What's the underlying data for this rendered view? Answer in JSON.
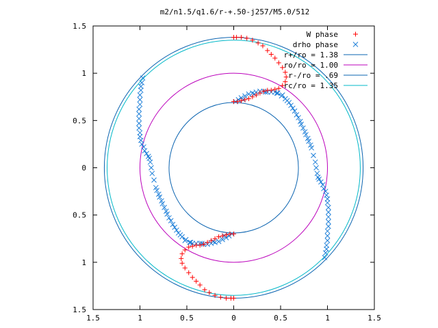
{
  "chart_data": {
    "type": "scatter",
    "title": "m2/n1.5/q1.6/r-+.50-j257/M5.0/512",
    "xlabel": "",
    "ylabel": "",
    "xlim": [
      -1.5,
      1.5
    ],
    "ylim": [
      -1.5,
      1.5
    ],
    "x_ticks": [
      "1.5",
      "1",
      "0.5",
      "0",
      "0.5",
      "1",
      "1.5"
    ],
    "y_ticks": [
      "1.5",
      "1",
      "0.5",
      "0",
      "0.5",
      "1",
      "1.5"
    ],
    "grid": false,
    "legend_position": "top-right",
    "colors": {
      "w_phase": "#ff0000",
      "drho_phase": "#1e7fd8",
      "r_plus": "#0a63b0",
      "ro": "#bb00bb",
      "r_minus": "#0a63b0",
      "rc": "#00b8c8",
      "frame": "#000000"
    },
    "legend": [
      {
        "label": "W phase",
        "kind": "marker",
        "marker": "plus",
        "color": "#ff0000"
      },
      {
        "label": "drho phase",
        "kind": "marker",
        "marker": "x",
        "color": "#1e7fd8"
      },
      {
        "label": "r+/ro = 1.38",
        "kind": "line",
        "color": "#0a63b0"
      },
      {
        "label": "ro/ro = 1.00",
        "kind": "line",
        "color": "#bb00bb"
      },
      {
        "label": "r-/ro = .69",
        "kind": "line",
        "color": "#0a63b0"
      },
      {
        "label": "rc/ro = 1.35",
        "kind": "line",
        "color": "#00b8c8"
      }
    ],
    "circles": [
      {
        "name": "r+/ro = 1.38",
        "r": 1.38,
        "color": "#0a63b0"
      },
      {
        "name": "ro/ro = 1.00",
        "r": 1.0,
        "color": "#bb00bb"
      },
      {
        "name": "r-/ro = .69",
        "r": 0.69,
        "color": "#0a63b0"
      },
      {
        "name": "rc/ro = 1.35",
        "r": 1.35,
        "color": "#00b8c8"
      }
    ],
    "series": [
      {
        "name": "W phase",
        "marker": "plus",
        "color": "#ff0000",
        "points": [
          [
            0.0,
            0.7
          ],
          [
            0.04,
            0.7
          ],
          [
            0.08,
            0.71
          ],
          [
            0.12,
            0.72
          ],
          [
            0.16,
            0.73
          ],
          [
            0.2,
            0.75
          ],
          [
            0.24,
            0.77
          ],
          [
            0.28,
            0.79
          ],
          [
            0.32,
            0.81
          ],
          [
            0.36,
            0.82
          ],
          [
            0.4,
            0.82
          ],
          [
            0.44,
            0.83
          ],
          [
            0.48,
            0.84
          ],
          [
            0.52,
            0.87
          ],
          [
            0.55,
            0.91
          ],
          [
            0.56,
            0.96
          ],
          [
            0.55,
            1.01
          ],
          [
            0.52,
            1.06
          ],
          [
            0.48,
            1.11
          ],
          [
            0.44,
            1.16
          ],
          [
            0.4,
            1.2
          ],
          [
            0.36,
            1.24
          ],
          [
            0.31,
            1.29
          ],
          [
            0.26,
            1.32
          ],
          [
            0.2,
            1.35
          ],
          [
            0.14,
            1.37
          ],
          [
            0.08,
            1.38
          ],
          [
            0.03,
            1.38
          ],
          [
            0.0,
            1.38
          ],
          [
            0.0,
            -0.7
          ],
          [
            -0.04,
            -0.7
          ],
          [
            -0.08,
            -0.71
          ],
          [
            -0.12,
            -0.72
          ],
          [
            -0.16,
            -0.73
          ],
          [
            -0.2,
            -0.75
          ],
          [
            -0.24,
            -0.77
          ],
          [
            -0.28,
            -0.79
          ],
          [
            -0.32,
            -0.81
          ],
          [
            -0.36,
            -0.82
          ],
          [
            -0.4,
            -0.82
          ],
          [
            -0.44,
            -0.83
          ],
          [
            -0.48,
            -0.84
          ],
          [
            -0.52,
            -0.87
          ],
          [
            -0.55,
            -0.91
          ],
          [
            -0.56,
            -0.96
          ],
          [
            -0.55,
            -1.01
          ],
          [
            -0.52,
            -1.06
          ],
          [
            -0.48,
            -1.11
          ],
          [
            -0.44,
            -1.16
          ],
          [
            -0.4,
            -1.2
          ],
          [
            -0.36,
            -1.24
          ],
          [
            -0.31,
            -1.29
          ],
          [
            -0.26,
            -1.32
          ],
          [
            -0.2,
            -1.35
          ],
          [
            -0.14,
            -1.37
          ],
          [
            -0.08,
            -1.38
          ],
          [
            -0.03,
            -1.38
          ],
          [
            0.0,
            -1.38
          ]
        ]
      },
      {
        "name": "drho phase",
        "marker": "x",
        "color": "#1e7fd8",
        "points": [
          [
            0.02,
            0.7
          ],
          [
            0.05,
            0.72
          ],
          [
            0.08,
            0.74
          ],
          [
            0.12,
            0.76
          ],
          [
            0.16,
            0.78
          ],
          [
            0.2,
            0.79
          ],
          [
            0.24,
            0.8
          ],
          [
            0.28,
            0.81
          ],
          [
            0.32,
            0.81
          ],
          [
            0.36,
            0.8
          ],
          [
            0.4,
            0.8
          ],
          [
            0.44,
            0.8
          ],
          [
            0.47,
            0.79
          ],
          [
            0.51,
            0.76
          ],
          [
            0.55,
            0.73
          ],
          [
            0.59,
            0.69
          ],
          [
            0.63,
            0.63
          ],
          [
            0.67,
            0.56
          ],
          [
            0.71,
            0.49
          ],
          [
            0.74,
            0.42
          ],
          [
            0.77,
            0.35
          ],
          [
            0.8,
            0.28
          ],
          [
            0.83,
            0.21
          ],
          [
            0.85,
            0.13
          ],
          [
            0.87,
            0.06
          ],
          [
            0.88,
            0.0
          ],
          [
            0.89,
            -0.06
          ],
          [
            0.91,
            -0.12
          ],
          [
            0.95,
            -0.18
          ],
          [
            0.98,
            -0.25
          ],
          [
            1.0,
            -0.33
          ],
          [
            1.01,
            -0.42
          ],
          [
            1.01,
            -0.52
          ],
          [
            1.01,
            -0.62
          ],
          [
            1.0,
            -0.72
          ],
          [
            0.99,
            -0.82
          ],
          [
            0.98,
            -0.9
          ],
          [
            0.97,
            -0.95
          ],
          [
            0.1,
            0.72
          ],
          [
            0.22,
            0.78
          ],
          [
            0.34,
            0.8
          ],
          [
            0.46,
            0.79
          ],
          [
            0.52,
            0.77
          ],
          [
            0.57,
            0.71
          ],
          [
            0.61,
            0.66
          ],
          [
            0.65,
            0.6
          ],
          [
            0.69,
            0.53
          ],
          [
            0.72,
            0.46
          ],
          [
            0.76,
            0.38
          ],
          [
            0.79,
            0.31
          ],
          [
            0.82,
            0.24
          ],
          [
            0.9,
            -0.1
          ],
          [
            0.93,
            -0.15
          ],
          [
            0.96,
            -0.22
          ],
          [
            0.99,
            -0.29
          ],
          [
            1.0,
            -0.37
          ],
          [
            1.01,
            -0.47
          ],
          [
            1.01,
            -0.57
          ],
          [
            1.0,
            -0.67
          ],
          [
            1.0,
            -0.77
          ],
          [
            0.99,
            -0.86
          ],
          [
            -0.02,
            -0.7
          ],
          [
            -0.05,
            -0.72
          ],
          [
            -0.08,
            -0.74
          ],
          [
            -0.12,
            -0.76
          ],
          [
            -0.16,
            -0.78
          ],
          [
            -0.2,
            -0.79
          ],
          [
            -0.24,
            -0.8
          ],
          [
            -0.28,
            -0.81
          ],
          [
            -0.32,
            -0.81
          ],
          [
            -0.36,
            -0.8
          ],
          [
            -0.4,
            -0.8
          ],
          [
            -0.44,
            -0.8
          ],
          [
            -0.47,
            -0.79
          ],
          [
            -0.51,
            -0.76
          ],
          [
            -0.55,
            -0.73
          ],
          [
            -0.59,
            -0.69
          ],
          [
            -0.63,
            -0.63
          ],
          [
            -0.67,
            -0.56
          ],
          [
            -0.71,
            -0.49
          ],
          [
            -0.74,
            -0.42
          ],
          [
            -0.77,
            -0.35
          ],
          [
            -0.8,
            -0.28
          ],
          [
            -0.83,
            -0.21
          ],
          [
            -0.85,
            -0.13
          ],
          [
            -0.87,
            -0.06
          ],
          [
            -0.88,
            0.0
          ],
          [
            -0.89,
            0.06
          ],
          [
            -0.91,
            0.12
          ],
          [
            -0.95,
            0.18
          ],
          [
            -0.98,
            0.25
          ],
          [
            -1.0,
            0.33
          ],
          [
            -1.01,
            0.42
          ],
          [
            -1.01,
            0.52
          ],
          [
            -1.01,
            0.62
          ],
          [
            -1.0,
            0.72
          ],
          [
            -0.99,
            0.82
          ],
          [
            -0.98,
            0.9
          ],
          [
            -0.97,
            0.95
          ],
          [
            -0.1,
            -0.72
          ],
          [
            -0.22,
            -0.78
          ],
          [
            -0.34,
            -0.8
          ],
          [
            -0.46,
            -0.79
          ],
          [
            -0.52,
            -0.77
          ],
          [
            -0.57,
            -0.71
          ],
          [
            -0.61,
            -0.66
          ],
          [
            -0.65,
            -0.6
          ],
          [
            -0.69,
            -0.53
          ],
          [
            -0.72,
            -0.46
          ],
          [
            -0.76,
            -0.38
          ],
          [
            -0.79,
            -0.31
          ],
          [
            -0.82,
            -0.24
          ],
          [
            -0.9,
            0.1
          ],
          [
            -0.93,
            0.15
          ],
          [
            -0.96,
            0.22
          ],
          [
            -0.99,
            0.29
          ],
          [
            -1.0,
            0.37
          ],
          [
            -1.01,
            0.47
          ],
          [
            -1.01,
            0.57
          ],
          [
            -1.0,
            0.67
          ],
          [
            -1.0,
            0.77
          ],
          [
            -0.99,
            0.86
          ]
        ]
      }
    ]
  }
}
